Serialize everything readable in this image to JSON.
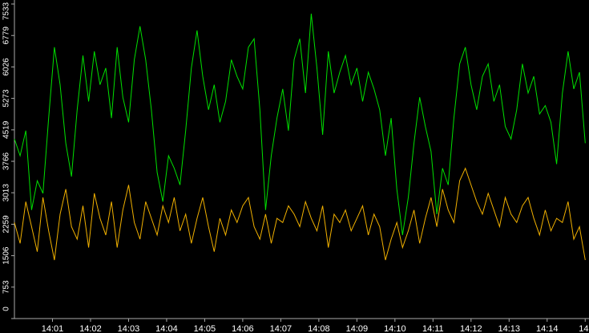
{
  "chart_data": {
    "type": "line",
    "x": [
      0,
      0.15,
      0.3,
      0.45,
      0.6,
      0.75,
      0.9,
      1.05,
      1.2,
      1.35,
      1.5,
      1.65,
      1.8,
      1.95,
      2.1,
      2.25,
      2.4,
      2.55,
      2.7,
      2.85,
      3,
      3.15,
      3.3,
      3.45,
      3.6,
      3.75,
      3.9,
      4.05,
      4.2,
      4.35,
      4.5,
      4.65,
      4.8,
      4.95,
      5.1,
      5.25,
      5.4,
      5.55,
      5.7,
      5.85,
      6,
      6.15,
      6.3,
      6.45,
      6.6,
      6.75,
      6.9,
      7.05,
      7.2,
      7.35,
      7.5,
      7.65,
      7.8,
      7.95,
      8.1,
      8.25,
      8.4,
      8.55,
      8.7,
      8.85,
      9,
      9.15,
      9.3,
      9.45,
      9.6,
      9.75,
      9.9,
      10.05,
      10.2,
      10.35,
      10.5,
      10.65,
      10.8,
      10.95,
      11.1,
      11.25,
      11.4,
      11.55,
      11.7,
      11.85,
      12,
      12.15,
      12.3,
      12.45,
      12.6,
      12.75,
      12.9,
      13.05,
      13.2,
      13.35,
      13.5,
      13.65,
      13.8,
      13.95,
      14.1,
      14.25,
      14.4,
      14.55,
      14.7,
      14.85,
      15
    ],
    "series": [
      {
        "color": "#00e000",
        "values": [
          4300,
          3900,
          4500,
          2600,
          3300,
          3000,
          4800,
          6500,
          5600,
          4200,
          3400,
          5000,
          6300,
          5200,
          6400,
          5600,
          6000,
          4800,
          6500,
          5300,
          4700,
          6200,
          7000,
          6200,
          5000,
          3500,
          2800,
          3900,
          3600,
          3200,
          4500,
          6000,
          6900,
          5800,
          5000,
          5600,
          4700,
          5200,
          6200,
          5800,
          5500,
          6500,
          6700,
          5000,
          2600,
          3900,
          4800,
          5500,
          4500,
          6200,
          6700,
          5400,
          7300,
          6000,
          4400,
          6400,
          5400,
          5900,
          6300,
          5600,
          6000,
          5200,
          5900,
          5500,
          5000,
          3900,
          4800,
          3100,
          2000,
          2900,
          4200,
          5300,
          4600,
          4000,
          2500,
          3600,
          3200,
          4800,
          6100,
          6500,
          5600,
          5000,
          5800,
          6100,
          5200,
          5600,
          4600,
          4300,
          5000,
          6100,
          5400,
          5800,
          4900,
          5100,
          4700,
          3700,
          5400,
          6400,
          5500,
          5900,
          4200
        ]
      },
      {
        "color": "#f0b000",
        "values": [
          2300,
          1800,
          2800,
          2200,
          1600,
          2900,
          2100,
          1400,
          2500,
          3100,
          2200,
          1900,
          2700,
          1700,
          3000,
          2400,
          2000,
          2800,
          1700,
          2600,
          3200,
          2300,
          1900,
          2800,
          2400,
          2000,
          2700,
          2300,
          2900,
          2100,
          2500,
          1800,
          2400,
          2900,
          2200,
          1600,
          2400,
          2000,
          2600,
          2300,
          2700,
          2900,
          2200,
          1900,
          2500,
          1800,
          2400,
          2300,
          2700,
          2500,
          2200,
          2800,
          2400,
          2100,
          2700,
          1700,
          2500,
          2300,
          2600,
          2100,
          2400,
          2700,
          2000,
          2500,
          2200,
          1400,
          1900,
          2300,
          1700,
          2100,
          2600,
          1800,
          2400,
          2900,
          2200,
          3100,
          2600,
          2300,
          3300,
          3600,
          3200,
          2800,
          2500,
          3000,
          2600,
          2200,
          2900,
          2500,
          2300,
          2700,
          2900,
          2400,
          2000,
          2600,
          2100,
          2400,
          2300,
          2800,
          1900,
          2200,
          1400
        ]
      }
    ],
    "xlim": [
      0,
      15.1
    ],
    "xticks": [
      {
        "value": 1,
        "label": "14:01"
      },
      {
        "value": 2,
        "label": "14:02"
      },
      {
        "value": 3,
        "label": "14:03"
      },
      {
        "value": 4,
        "label": "14:04"
      },
      {
        "value": 5,
        "label": "14:05"
      },
      {
        "value": 6,
        "label": "14:06"
      },
      {
        "value": 7,
        "label": "14:07"
      },
      {
        "value": 8,
        "label": "14:08"
      },
      {
        "value": 9,
        "label": "14:09"
      },
      {
        "value": 10,
        "label": "14:10"
      },
      {
        "value": 11,
        "label": "14:11"
      },
      {
        "value": 12,
        "label": "14:12"
      },
      {
        "value": 13,
        "label": "14:13"
      },
      {
        "value": 14,
        "label": "14:14"
      },
      {
        "value": 15,
        "label": "14"
      }
    ],
    "ylim": [
      0,
      7533
    ],
    "yticks": [
      0,
      753,
      1506,
      2259,
      3013,
      3766,
      4519,
      5273,
      6026,
      6779,
      7533
    ]
  }
}
